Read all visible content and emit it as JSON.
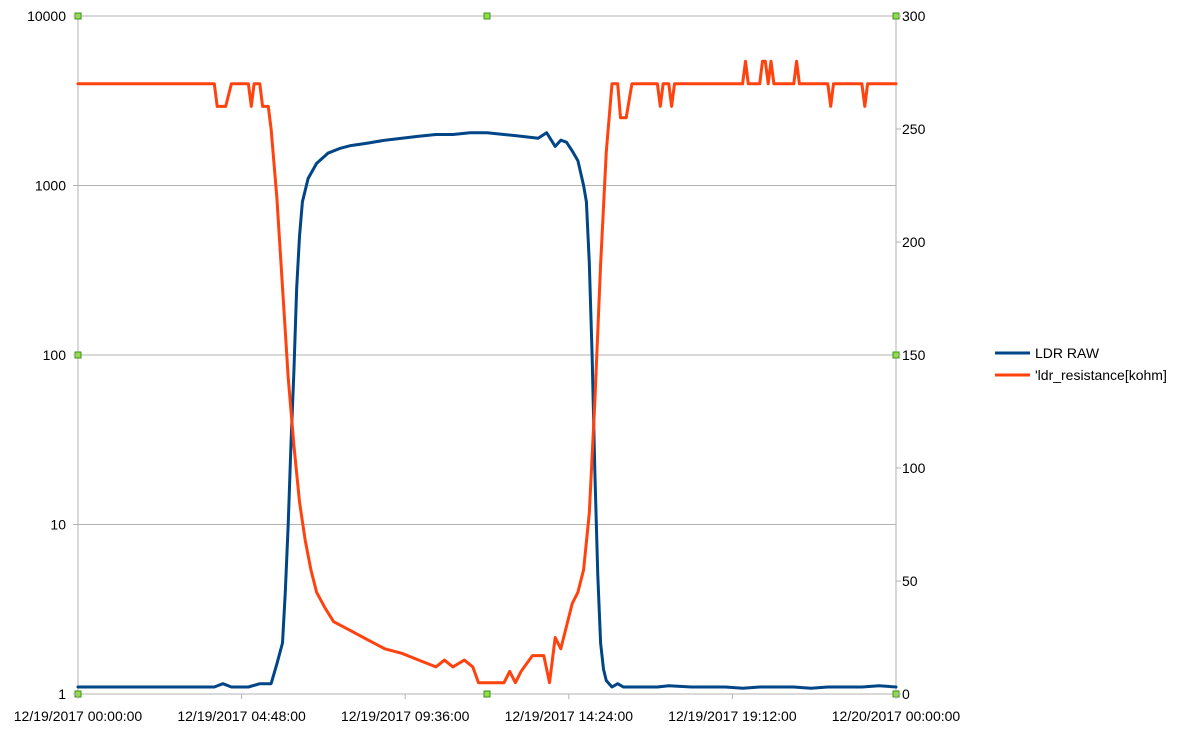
{
  "chart_data": {
    "type": "line",
    "title": "",
    "legend_position": "right",
    "grid": true,
    "x_axis": {
      "ticks": [
        "12/19/2017 00:00:00",
        "12/19/2017 04:48:00",
        "12/19/2017 09:36:00",
        "12/19/2017 14:24:00",
        "12/19/2017 19:12:00",
        "12/20/2017 00:00:00"
      ],
      "range": [
        "12/19/2017 00:00:00",
        "12/20/2017 00:00:00"
      ]
    },
    "y_left": {
      "scale": "log",
      "range": [
        1,
        10000
      ],
      "ticks": [
        "1",
        "10",
        "100",
        "1000",
        "10000"
      ]
    },
    "y_right": {
      "scale": "linear",
      "range": [
        0,
        300
      ],
      "ticks": [
        "0",
        "50",
        "100",
        "150",
        "200",
        "250",
        "300"
      ]
    },
    "series": [
      {
        "name": "LDR RAW",
        "axis": "left",
        "color": "#004586",
        "points": [
          [
            "12/19/2017 00:00:00",
            1.1
          ],
          [
            "12/19/2017 01:00:00",
            1.1
          ],
          [
            "12/19/2017 02:00:00",
            1.1
          ],
          [
            "12/19/2017 03:00:00",
            1.1
          ],
          [
            "12/19/2017 04:00:00",
            1.1
          ],
          [
            "12/19/2017 04:15:00",
            1.15
          ],
          [
            "12/19/2017 04:30:00",
            1.1
          ],
          [
            "12/19/2017 05:00:00",
            1.1
          ],
          [
            "12/19/2017 05:20:00",
            1.15
          ],
          [
            "12/19/2017 05:40:00",
            1.15
          ],
          [
            "12/19/2017 05:50:00",
            1.5
          ],
          [
            "12/19/2017 06:00:00",
            2
          ],
          [
            "12/19/2017 06:05:00",
            4
          ],
          [
            "12/19/2017 06:10:00",
            10
          ],
          [
            "12/19/2017 06:15:00",
            30
          ],
          [
            "12/19/2017 06:20:00",
            80
          ],
          [
            "12/19/2017 06:25:00",
            250
          ],
          [
            "12/19/2017 06:30:00",
            500
          ],
          [
            "12/19/2017 06:35:00",
            800
          ],
          [
            "12/19/2017 06:45:00",
            1100
          ],
          [
            "12/19/2017 07:00:00",
            1350
          ],
          [
            "12/19/2017 07:20:00",
            1550
          ],
          [
            "12/19/2017 07:40:00",
            1650
          ],
          [
            "12/19/2017 08:00:00",
            1720
          ],
          [
            "12/19/2017 08:30:00",
            1780
          ],
          [
            "12/19/2017 09:00:00",
            1850
          ],
          [
            "12/19/2017 09:30:00",
            1900
          ],
          [
            "12/19/2017 10:00:00",
            1950
          ],
          [
            "12/19/2017 10:30:00",
            2000
          ],
          [
            "12/19/2017 11:00:00",
            2000
          ],
          [
            "12/19/2017 11:30:00",
            2050
          ],
          [
            "12/19/2017 12:00:00",
            2050
          ],
          [
            "12/19/2017 12:30:00",
            2000
          ],
          [
            "12/19/2017 13:00:00",
            1950
          ],
          [
            "12/19/2017 13:30:00",
            1900
          ],
          [
            "12/19/2017 13:45:00",
            2050
          ],
          [
            "12/19/2017 14:00:00",
            1700
          ],
          [
            "12/19/2017 14:10:00",
            1850
          ],
          [
            "12/19/2017 14:20:00",
            1800
          ],
          [
            "12/19/2017 14:30:00",
            1600
          ],
          [
            "12/19/2017 14:40:00",
            1400
          ],
          [
            "12/19/2017 14:50:00",
            1000
          ],
          [
            "12/19/2017 14:55:00",
            800
          ],
          [
            "12/19/2017 15:00:00",
            350
          ],
          [
            "12/19/2017 15:05:00",
            100
          ],
          [
            "12/19/2017 15:10:00",
            20
          ],
          [
            "12/19/2017 15:15:00",
            5
          ],
          [
            "12/19/2017 15:20:00",
            2
          ],
          [
            "12/19/2017 15:25:00",
            1.4
          ],
          [
            "12/19/2017 15:30:00",
            1.2
          ],
          [
            "12/19/2017 15:40:00",
            1.1
          ],
          [
            "12/19/2017 15:50:00",
            1.15
          ],
          [
            "12/19/2017 16:00:00",
            1.1
          ],
          [
            "12/19/2017 17:00:00",
            1.1
          ],
          [
            "12/19/2017 17:20:00",
            1.12
          ],
          [
            "12/19/2017 18:00:00",
            1.1
          ],
          [
            "12/19/2017 19:00:00",
            1.1
          ],
          [
            "12/19/2017 19:30:00",
            1.08
          ],
          [
            "12/19/2017 20:00:00",
            1.1
          ],
          [
            "12/19/2017 21:00:00",
            1.1
          ],
          [
            "12/19/2017 21:30:00",
            1.08
          ],
          [
            "12/19/2017 22:00:00",
            1.1
          ],
          [
            "12/19/2017 23:00:00",
            1.1
          ],
          [
            "12/19/2017 23:30:00",
            1.12
          ],
          [
            "12/20/2017 00:00:00",
            1.1
          ]
        ]
      },
      {
        "name": "'ldr_resistance[kohm]",
        "axis": "right",
        "color": "#ff420e",
        "points": [
          [
            "12/19/2017 00:00:00",
            270
          ],
          [
            "12/19/2017 02:00:00",
            270
          ],
          [
            "12/19/2017 04:00:00",
            270
          ],
          [
            "12/19/2017 04:05:00",
            260
          ],
          [
            "12/19/2017 04:20:00",
            260
          ],
          [
            "12/19/2017 04:30:00",
            270
          ],
          [
            "12/19/2017 05:00:00",
            270
          ],
          [
            "12/19/2017 05:05:00",
            260
          ],
          [
            "12/19/2017 05:10:00",
            270
          ],
          [
            "12/19/2017 05:20:00",
            270
          ],
          [
            "12/19/2017 05:25:00",
            260
          ],
          [
            "12/19/2017 05:35:00",
            260
          ],
          [
            "12/19/2017 05:40:00",
            250
          ],
          [
            "12/19/2017 05:50:00",
            220
          ],
          [
            "12/19/2017 06:00:00",
            180
          ],
          [
            "12/19/2017 06:10:00",
            140
          ],
          [
            "12/19/2017 06:20:00",
            110
          ],
          [
            "12/19/2017 06:30:00",
            85
          ],
          [
            "12/19/2017 06:40:00",
            68
          ],
          [
            "12/19/2017 06:50:00",
            55
          ],
          [
            "12/19/2017 07:00:00",
            45
          ],
          [
            "12/19/2017 07:15:00",
            38
          ],
          [
            "12/19/2017 07:30:00",
            32
          ],
          [
            "12/19/2017 08:00:00",
            28
          ],
          [
            "12/19/2017 08:30:00",
            24
          ],
          [
            "12/19/2017 09:00:00",
            20
          ],
          [
            "12/19/2017 09:30:00",
            18
          ],
          [
            "12/19/2017 10:00:00",
            15
          ],
          [
            "12/19/2017 10:30:00",
            12
          ],
          [
            "12/19/2017 10:45:00",
            15
          ],
          [
            "12/19/2017 11:00:00",
            12
          ],
          [
            "12/19/2017 11:20:00",
            15
          ],
          [
            "12/19/2017 11:35:00",
            12
          ],
          [
            "12/19/2017 11:45:00",
            5
          ],
          [
            "12/19/2017 12:30:00",
            5
          ],
          [
            "12/19/2017 12:40:00",
            10
          ],
          [
            "12/19/2017 12:50:00",
            5
          ],
          [
            "12/19/2017 13:00:00",
            10
          ],
          [
            "12/19/2017 13:20:00",
            17
          ],
          [
            "12/19/2017 13:40:00",
            17
          ],
          [
            "12/19/2017 13:50:00",
            5
          ],
          [
            "12/19/2017 14:00:00",
            25
          ],
          [
            "12/19/2017 14:10:00",
            20
          ],
          [
            "12/19/2017 14:20:00",
            30
          ],
          [
            "12/19/2017 14:30:00",
            40
          ],
          [
            "12/19/2017 14:40:00",
            45
          ],
          [
            "12/19/2017 14:50:00",
            55
          ],
          [
            "12/19/2017 15:00:00",
            80
          ],
          [
            "12/19/2017 15:10:00",
            130
          ],
          [
            "12/19/2017 15:20:00",
            190
          ],
          [
            "12/19/2017 15:30:00",
            240
          ],
          [
            "12/19/2017 15:40:00",
            270
          ],
          [
            "12/19/2017 15:50:00",
            270
          ],
          [
            "12/19/2017 15:55:00",
            255
          ],
          [
            "12/19/2017 16:05:00",
            255
          ],
          [
            "12/19/2017 16:15:00",
            270
          ],
          [
            "12/19/2017 17:00:00",
            270
          ],
          [
            "12/19/2017 17:05:00",
            260
          ],
          [
            "12/19/2017 17:10:00",
            270
          ],
          [
            "12/19/2017 17:20:00",
            270
          ],
          [
            "12/19/2017 17:25:00",
            260
          ],
          [
            "12/19/2017 17:30:00",
            270
          ],
          [
            "12/19/2017 19:30:00",
            270
          ],
          [
            "12/19/2017 19:35:00",
            280
          ],
          [
            "12/19/2017 19:40:00",
            270
          ],
          [
            "12/19/2017 20:00:00",
            270
          ],
          [
            "12/19/2017 20:05:00",
            280
          ],
          [
            "12/19/2017 20:10:00",
            280
          ],
          [
            "12/19/2017 20:15:00",
            270
          ],
          [
            "12/19/2017 20:20:00",
            280
          ],
          [
            "12/19/2017 20:25:00",
            270
          ],
          [
            "12/19/2017 21:00:00",
            270
          ],
          [
            "12/19/2017 21:05:00",
            280
          ],
          [
            "12/19/2017 21:10:00",
            270
          ],
          [
            "12/19/2017 22:00:00",
            270
          ],
          [
            "12/19/2017 22:05:00",
            260
          ],
          [
            "12/19/2017 22:10:00",
            270
          ],
          [
            "12/19/2017 23:00:00",
            270
          ],
          [
            "12/19/2017 23:05:00",
            260
          ],
          [
            "12/19/2017 23:10:00",
            270
          ],
          [
            "12/20/2017 00:00:00",
            270
          ]
        ]
      }
    ]
  }
}
